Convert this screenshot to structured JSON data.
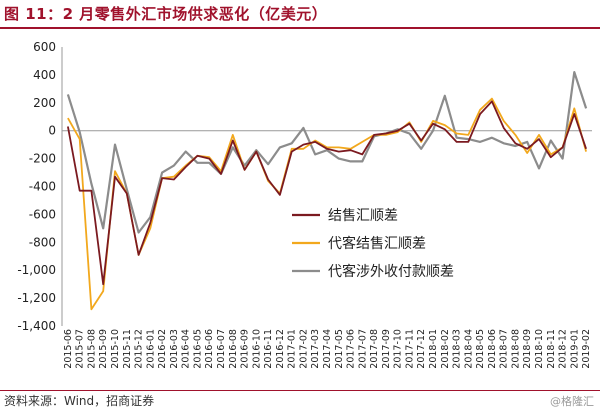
{
  "header": {
    "title": "图 11：2 月零售外汇市场供求恶化（亿美元）"
  },
  "footer": {
    "source": "资料来源：Wind，招商证券",
    "watermark": "@格隆汇"
  },
  "chart_data": {
    "type": "line",
    "title": "",
    "xlabel": "",
    "ylabel": "",
    "ylim": [
      -1400,
      600
    ],
    "yticks": [
      -1400,
      -1200,
      -1000,
      -800,
      -600,
      -400,
      -200,
      0,
      200,
      400,
      600
    ],
    "ytick_labels": [
      "-1,400",
      "-1,200",
      "-1,000",
      "-800",
      "-600",
      "-400",
      "-200",
      "0",
      "200",
      "400",
      "600"
    ],
    "grid": false,
    "legend_position": "center",
    "x": [
      "2015-06",
      "2015-07",
      "2015-08",
      "2015-09",
      "2015-10",
      "2015-11",
      "2015-12",
      "2016-01",
      "2016-02",
      "2016-03",
      "2016-04",
      "2016-05",
      "2016-06",
      "2016-07",
      "2016-08",
      "2016-09",
      "2016-10",
      "2016-11",
      "2016-12",
      "2017-01",
      "2017-02",
      "2017-03",
      "2017-04",
      "2017-05",
      "2017-06",
      "2017-07",
      "2017-08",
      "2017-09",
      "2017-10",
      "2017-11",
      "2017-12",
      "2018-01",
      "2018-02",
      "2018-03",
      "2018-04",
      "2018-05",
      "2018-06",
      "2018-07",
      "2018-08",
      "2018-09",
      "2018-10",
      "2018-11",
      "2018-12",
      "2019-01",
      "2019-02"
    ],
    "series": [
      {
        "name": "结售汇顺差",
        "color": "#7b1a20",
        "values": [
          30,
          -430,
          -430,
          -1100,
          -330,
          -450,
          -890,
          -660,
          -340,
          -350,
          -260,
          -180,
          -200,
          -310,
          -70,
          -280,
          -150,
          -350,
          -460,
          -150,
          -100,
          -80,
          -130,
          -150,
          -140,
          -170,
          -30,
          -20,
          0,
          50,
          -70,
          50,
          10,
          -80,
          -80,
          120,
          210,
          20,
          -90,
          -130,
          -60,
          -190,
          -120,
          120,
          -130
        ]
      },
      {
        "name": "代客结售汇顺差",
        "color": "#f2a81d",
        "values": [
          90,
          -60,
          -1280,
          -1150,
          -290,
          -450,
          -890,
          -700,
          -340,
          -330,
          -250,
          -180,
          -190,
          -290,
          -30,
          -280,
          -150,
          -360,
          -450,
          -130,
          -130,
          -70,
          -120,
          -120,
          -130,
          -80,
          -30,
          -30,
          -10,
          60,
          -80,
          70,
          40,
          -20,
          -30,
          150,
          230,
          70,
          -30,
          -160,
          -30,
          -170,
          -120,
          160,
          -150
        ]
      },
      {
        "name": "代客涉外收付款顺差",
        "color": "#8c8c8c",
        "values": [
          260,
          -10,
          -380,
          -700,
          -100,
          -420,
          -730,
          -620,
          -300,
          -250,
          -150,
          -230,
          -230,
          -310,
          -120,
          -250,
          -140,
          -240,
          -120,
          -90,
          20,
          -170,
          -140,
          -200,
          -220,
          -220,
          -40,
          -20,
          10,
          -20,
          -130,
          0,
          250,
          -50,
          -60,
          -80,
          -50,
          -90,
          -110,
          -80,
          -270,
          -70,
          -200,
          420,
          160
        ]
      }
    ]
  }
}
